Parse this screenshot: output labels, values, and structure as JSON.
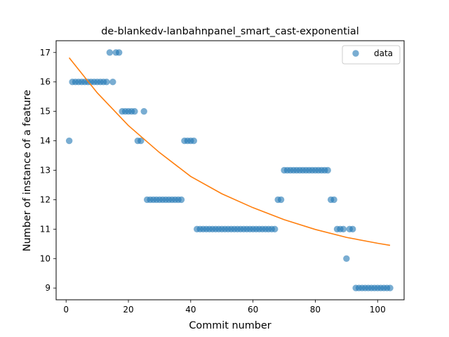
{
  "chart_data": {
    "type": "scatter",
    "title": "de-blankedv-lanbahnpanel_smart_cast-exponential",
    "xlabel": "Commit number",
    "ylabel": "Number of instance of a feature",
    "xlim": [
      -3.2,
      108.5
    ],
    "ylim": [
      8.6,
      17.4
    ],
    "xticks": [
      0,
      20,
      40,
      60,
      80,
      100
    ],
    "yticks": [
      9,
      10,
      11,
      12,
      13,
      14,
      15,
      16,
      17
    ],
    "grid": false,
    "legend_position": "top-right",
    "colors": {
      "data": "#1f77b4",
      "fit": "#ff7f0e"
    },
    "series": [
      {
        "name": "data",
        "kind": "scatter",
        "points": [
          [
            1,
            14
          ],
          [
            2,
            16
          ],
          [
            3,
            16
          ],
          [
            4,
            16
          ],
          [
            5,
            16
          ],
          [
            6,
            16
          ],
          [
            7,
            16
          ],
          [
            8,
            16
          ],
          [
            9,
            16
          ],
          [
            10,
            16
          ],
          [
            11,
            16
          ],
          [
            12,
            16
          ],
          [
            13,
            16
          ],
          [
            14,
            17
          ],
          [
            15,
            16
          ],
          [
            16,
            17
          ],
          [
            17,
            17
          ],
          [
            18,
            15
          ],
          [
            19,
            15
          ],
          [
            20,
            15
          ],
          [
            21,
            15
          ],
          [
            22,
            15
          ],
          [
            23,
            14
          ],
          [
            24,
            14
          ],
          [
            25,
            15
          ],
          [
            26,
            12
          ],
          [
            27,
            12
          ],
          [
            28,
            12
          ],
          [
            29,
            12
          ],
          [
            30,
            12
          ],
          [
            31,
            12
          ],
          [
            32,
            12
          ],
          [
            33,
            12
          ],
          [
            34,
            12
          ],
          [
            35,
            12
          ],
          [
            36,
            12
          ],
          [
            37,
            12
          ],
          [
            38,
            14
          ],
          [
            39,
            14
          ],
          [
            40,
            14
          ],
          [
            41,
            14
          ],
          [
            42,
            11
          ],
          [
            43,
            11
          ],
          [
            44,
            11
          ],
          [
            45,
            11
          ],
          [
            46,
            11
          ],
          [
            47,
            11
          ],
          [
            48,
            11
          ],
          [
            49,
            11
          ],
          [
            50,
            11
          ],
          [
            51,
            11
          ],
          [
            52,
            11
          ],
          [
            53,
            11
          ],
          [
            54,
            11
          ],
          [
            55,
            11
          ],
          [
            56,
            11
          ],
          [
            57,
            11
          ],
          [
            58,
            11
          ],
          [
            59,
            11
          ],
          [
            60,
            11
          ],
          [
            61,
            11
          ],
          [
            62,
            11
          ],
          [
            63,
            11
          ],
          [
            64,
            11
          ],
          [
            65,
            11
          ],
          [
            66,
            11
          ],
          [
            67,
            11
          ],
          [
            68,
            12
          ],
          [
            69,
            12
          ],
          [
            70,
            13
          ],
          [
            71,
            13
          ],
          [
            72,
            13
          ],
          [
            73,
            13
          ],
          [
            74,
            13
          ],
          [
            75,
            13
          ],
          [
            76,
            13
          ],
          [
            77,
            13
          ],
          [
            78,
            13
          ],
          [
            79,
            13
          ],
          [
            80,
            13
          ],
          [
            81,
            13
          ],
          [
            82,
            13
          ],
          [
            83,
            13
          ],
          [
            84,
            13
          ],
          [
            85,
            12
          ],
          [
            86,
            12
          ],
          [
            87,
            11
          ],
          [
            88,
            11
          ],
          [
            89,
            11
          ],
          [
            90,
            10
          ],
          [
            91,
            11
          ],
          [
            92,
            11
          ],
          [
            93,
            9
          ],
          [
            94,
            9
          ],
          [
            95,
            9
          ],
          [
            96,
            9
          ],
          [
            97,
            9
          ],
          [
            98,
            9
          ],
          [
            99,
            9
          ],
          [
            100,
            9
          ],
          [
            101,
            9
          ],
          [
            102,
            9
          ],
          [
            103,
            9
          ],
          [
            104,
            9
          ]
        ]
      },
      {
        "kind": "line",
        "points": [
          [
            1,
            16.82
          ],
          [
            10,
            15.63
          ],
          [
            20,
            14.52
          ],
          [
            30,
            13.6
          ],
          [
            40,
            12.79
          ],
          [
            50,
            12.2
          ],
          [
            60,
            11.73
          ],
          [
            70,
            11.32
          ],
          [
            80,
            10.99
          ],
          [
            90,
            10.72
          ],
          [
            100,
            10.52
          ],
          [
            104,
            10.45
          ]
        ]
      }
    ]
  }
}
